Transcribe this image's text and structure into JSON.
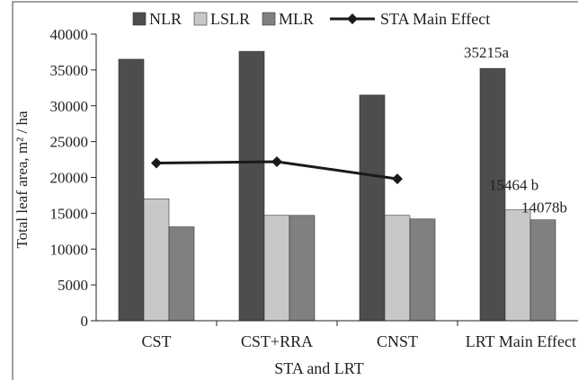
{
  "chart_data": {
    "type": "bar",
    "title": "",
    "xlabel": "STA and LRT",
    "ylabel": "Total leaf area, m² / ha",
    "ylim": [
      0,
      40000
    ],
    "yticks": [
      0,
      5000,
      10000,
      15000,
      20000,
      25000,
      30000,
      35000,
      40000
    ],
    "categories": [
      "CST",
      "CST+RRA",
      "CNST",
      "LRT Main Effect"
    ],
    "series": [
      {
        "name": "NLR",
        "color": "#4d4d4d",
        "values": [
          36500,
          37600,
          31500,
          35215
        ]
      },
      {
        "name": "LSLR",
        "color": "#c8c8c8",
        "values": [
          17000,
          14700,
          14700,
          15464
        ]
      },
      {
        "name": "MLR",
        "color": "#808080",
        "values": [
          13100,
          14700,
          14200,
          14078
        ]
      }
    ],
    "line_series": {
      "name": "STA Main Effect",
      "color": "#1a1a1a",
      "marker": "diamond",
      "categories": [
        "CST",
        "CST+RRA",
        "CNST"
      ],
      "values": [
        22000,
        22200,
        19800
      ]
    },
    "data_labels": [
      {
        "category": "LRT Main Effect",
        "series": "NLR",
        "text": "35215a"
      },
      {
        "category": "LRT Main Effect",
        "series": "LSLR",
        "text": "15464 b"
      },
      {
        "category": "LRT Main Effect",
        "series": "MLR",
        "text": "14078b"
      }
    ],
    "legend_position": "top",
    "grid": false
  }
}
